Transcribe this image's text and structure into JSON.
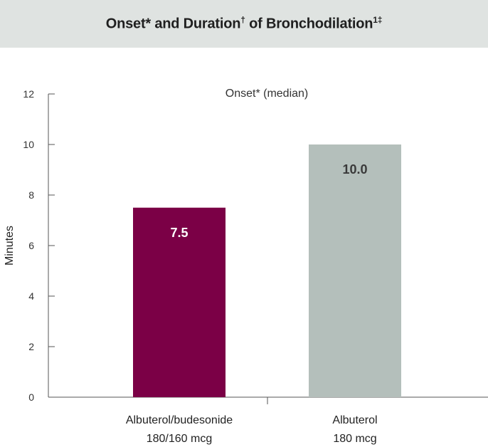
{
  "header": {
    "title": "Onset* and Duration",
    "dagger": "†",
    "title_rest": " of Bronchodilation",
    "refs": "1‡"
  },
  "colors": {
    "header_bg": "#dfe3e1",
    "axis": "#555555",
    "bar_primary": "#7b0046",
    "bar_secondary": "#b4bfbb",
    "label_on_primary": "#ffffff",
    "label_on_secondary": "#3a3a3a"
  },
  "chart_data": {
    "type": "bar",
    "subtitle": "Onset* (median)",
    "ylabel": "Minutes",
    "xlabel": "",
    "ylim": [
      0,
      12
    ],
    "yticks": [
      0,
      2,
      4,
      6,
      8,
      10,
      12
    ],
    "grid": false,
    "categories": [
      [
        "Albuterol/budesonide",
        "180/160 mcg"
      ],
      [
        "Albuterol",
        "180 mcg"
      ]
    ],
    "values": [
      7.5,
      10.0
    ],
    "value_labels": [
      "7.5",
      "10.0"
    ],
    "bar_colors": [
      "#7b0046",
      "#b4bfbb"
    ],
    "label_colors": [
      "#ffffff",
      "#3a3a3a"
    ]
  }
}
